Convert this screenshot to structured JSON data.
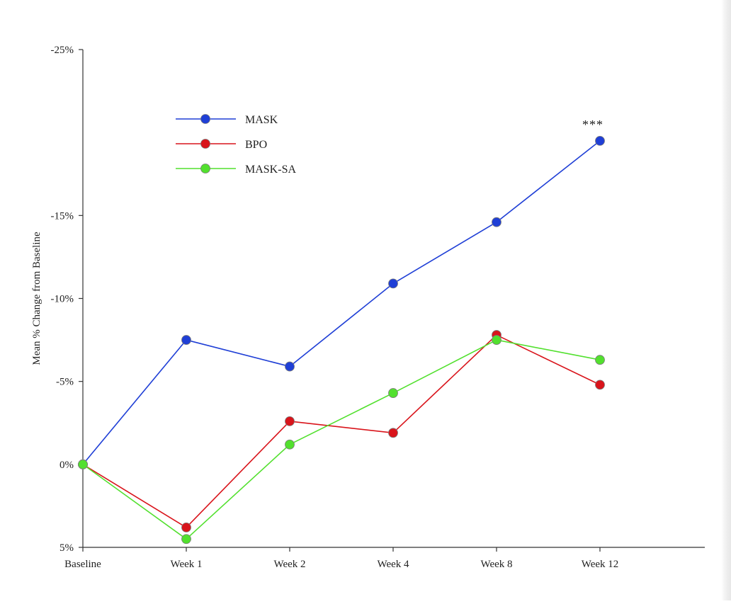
{
  "chart_data": {
    "type": "line",
    "title": "",
    "xlabel": "",
    "ylabel": "Mean % Change from Baseline",
    "categories": [
      "Baseline",
      "Week 1",
      "Week 2",
      "Week 4",
      "Week 8",
      "Week 12"
    ],
    "y_ticks": [
      {
        "value": -25,
        "label": "-25%"
      },
      {
        "value": -15,
        "label": "-15%"
      },
      {
        "value": -10,
        "label": "-10%"
      },
      {
        "value": -5,
        "label": "-5%"
      },
      {
        "value": 0,
        "label": "0%"
      },
      {
        "value": 5,
        "label": "5%"
      }
    ],
    "ylim": [
      5,
      -25
    ],
    "y_axis_inverted": true,
    "grid": false,
    "legend_position": "top-left",
    "series": [
      {
        "name": "MASK",
        "color": "#1f3fd6",
        "values": [
          0,
          -7.5,
          -5.9,
          -10.9,
          -14.6,
          -19.5
        ]
      },
      {
        "name": "BPO",
        "color": "#d9141b",
        "values": [
          0,
          3.8,
          -2.6,
          -1.9,
          -7.8,
          -4.8
        ]
      },
      {
        "name": "MASK-SA",
        "color": "#52e02e",
        "values": [
          0,
          4.5,
          -1.2,
          -4.3,
          -7.5,
          -6.3
        ]
      }
    ],
    "annotations": [
      {
        "text": "***",
        "category": "Week 12",
        "series": "MASK"
      }
    ]
  }
}
